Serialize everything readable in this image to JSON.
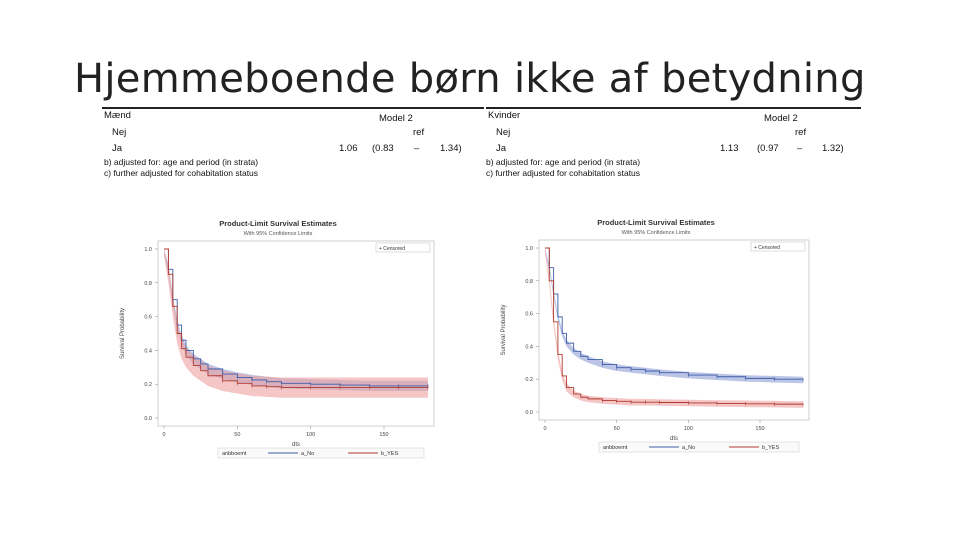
{
  "slide": {
    "title": "Hjemmeboende børn ikke af betydning"
  },
  "tables": [
    {
      "group": "Mænd",
      "model": "Model 2",
      "rows": [
        {
          "label": "Nej",
          "value": "ref",
          "ci_low": "",
          "dash": "",
          "ci_high": ""
        },
        {
          "label": "Ja",
          "value": "1.06",
          "ci_low": "(0.83",
          "dash": "–",
          "ci_high": "1.34)"
        }
      ],
      "footnotes": [
        "b) adjusted for: age and period (in strata)",
        "c) further adjusted for cohabitation status"
      ]
    },
    {
      "group": "Kvinder",
      "model": "Model 2",
      "rows": [
        {
          "label": "Nej",
          "value": "ref",
          "ci_low": "",
          "dash": "",
          "ci_high": ""
        },
        {
          "label": "Ja",
          "value": "1.13",
          "ci_low": "(0.97",
          "dash": "–",
          "ci_high": "1.32)"
        }
      ],
      "footnotes": [
        "b) adjusted for: age and period (in strata)",
        "c) further adjusted for cohabitation status"
      ]
    }
  ],
  "chart_data": [
    {
      "type": "line",
      "title": "Product-Limit Survival Estimates",
      "subtitle": "With 95% Confidence Limits",
      "xlabel": "dts",
      "ylabel": "Survival Probability",
      "xlim": [
        0,
        180
      ],
      "ylim": [
        0,
        1
      ],
      "xticks": [
        "0",
        "50",
        "100",
        "150"
      ],
      "xtick_values": [
        0,
        50,
        100,
        150
      ],
      "yticks": [
        "0.0",
        "0.2",
        "0.4",
        "0.6",
        "0.8",
        "1.0"
      ],
      "ytick_values": [
        0,
        0.2,
        0.4,
        0.6,
        0.8,
        1.0
      ],
      "inset_legend": "+ Censored",
      "legend_title": "anbboemt",
      "series": [
        {
          "name": "a_No",
          "color": "#3d5da8",
          "band_color": "#8f9ed6",
          "x": [
            0,
            3,
            6,
            9,
            12,
            15,
            20,
            25,
            30,
            40,
            50,
            60,
            70,
            80,
            100,
            120,
            140,
            160,
            180
          ],
          "y": [
            1.0,
            0.88,
            0.7,
            0.55,
            0.46,
            0.4,
            0.35,
            0.32,
            0.29,
            0.26,
            0.24,
            0.225,
            0.215,
            0.205,
            0.2,
            0.195,
            0.19,
            0.19,
            0.19
          ],
          "band": [
            0.03,
            0.03,
            0.03,
            0.03,
            0.03,
            0.03,
            0.03,
            0.03,
            0.03,
            0.03,
            0.03,
            0.03,
            0.03,
            0.03,
            0.03,
            0.03,
            0.03,
            0.03,
            0.03
          ]
        },
        {
          "name": "b_YES",
          "color": "#b03a2e",
          "band_color": "#eda0a0",
          "x": [
            0,
            3,
            6,
            9,
            12,
            15,
            20,
            25,
            30,
            40,
            50,
            60,
            70,
            80,
            100,
            120,
            140,
            160,
            180
          ],
          "y": [
            1.0,
            0.85,
            0.66,
            0.5,
            0.41,
            0.36,
            0.31,
            0.28,
            0.25,
            0.22,
            0.205,
            0.19,
            0.185,
            0.18,
            0.18,
            0.18,
            0.18,
            0.18,
            0.18
          ],
          "band": [
            0.04,
            0.05,
            0.06,
            0.06,
            0.06,
            0.06,
            0.06,
            0.06,
            0.06,
            0.06,
            0.06,
            0.06,
            0.06,
            0.06,
            0.06,
            0.06,
            0.06,
            0.06,
            0.06
          ]
        }
      ]
    },
    {
      "type": "line",
      "title": "Product-Limit Survival Estimates",
      "subtitle": "With 95% Confidence Limits",
      "xlabel": "dts",
      "ylabel": "Survival Probability",
      "xlim": [
        0,
        180
      ],
      "ylim": [
        0,
        1
      ],
      "xticks": [
        "0",
        "50",
        "100",
        "150"
      ],
      "xtick_values": [
        0,
        50,
        100,
        150
      ],
      "yticks": [
        "0.0",
        "0.2",
        "0.4",
        "0.6",
        "0.8",
        "1.0"
      ],
      "ytick_values": [
        0,
        0.2,
        0.4,
        0.6,
        0.8,
        1.0
      ],
      "inset_legend": "+ Censored",
      "legend_title": "anbboemt",
      "series": [
        {
          "name": "a_No",
          "color": "#3d5da8",
          "band_color": "#8f9ed6",
          "x": [
            0,
            3,
            6,
            9,
            12,
            15,
            20,
            25,
            30,
            40,
            50,
            60,
            70,
            80,
            100,
            120,
            140,
            160,
            180
          ],
          "y": [
            1.0,
            0.88,
            0.72,
            0.58,
            0.48,
            0.42,
            0.37,
            0.34,
            0.32,
            0.29,
            0.27,
            0.26,
            0.25,
            0.24,
            0.225,
            0.215,
            0.205,
            0.2,
            0.195
          ],
          "band": [
            0.02,
            0.02,
            0.02,
            0.02,
            0.02,
            0.02,
            0.02,
            0.02,
            0.02,
            0.02,
            0.02,
            0.02,
            0.02,
            0.02,
            0.02,
            0.02,
            0.02,
            0.02,
            0.02
          ]
        },
        {
          "name": "b_YES",
          "color": "#b03a2e",
          "band_color": "#eda0a0",
          "x": [
            0,
            3,
            6,
            9,
            12,
            15,
            20,
            25,
            30,
            40,
            50,
            60,
            70,
            80,
            100,
            120,
            140,
            160,
            180
          ],
          "y": [
            1.0,
            0.8,
            0.55,
            0.35,
            0.22,
            0.15,
            0.11,
            0.09,
            0.08,
            0.07,
            0.065,
            0.06,
            0.06,
            0.058,
            0.055,
            0.052,
            0.05,
            0.048,
            0.045
          ],
          "band": [
            0.03,
            0.03,
            0.03,
            0.03,
            0.025,
            0.025,
            0.02,
            0.02,
            0.02,
            0.02,
            0.02,
            0.02,
            0.02,
            0.02,
            0.02,
            0.02,
            0.02,
            0.02,
            0.02
          ]
        }
      ]
    }
  ]
}
